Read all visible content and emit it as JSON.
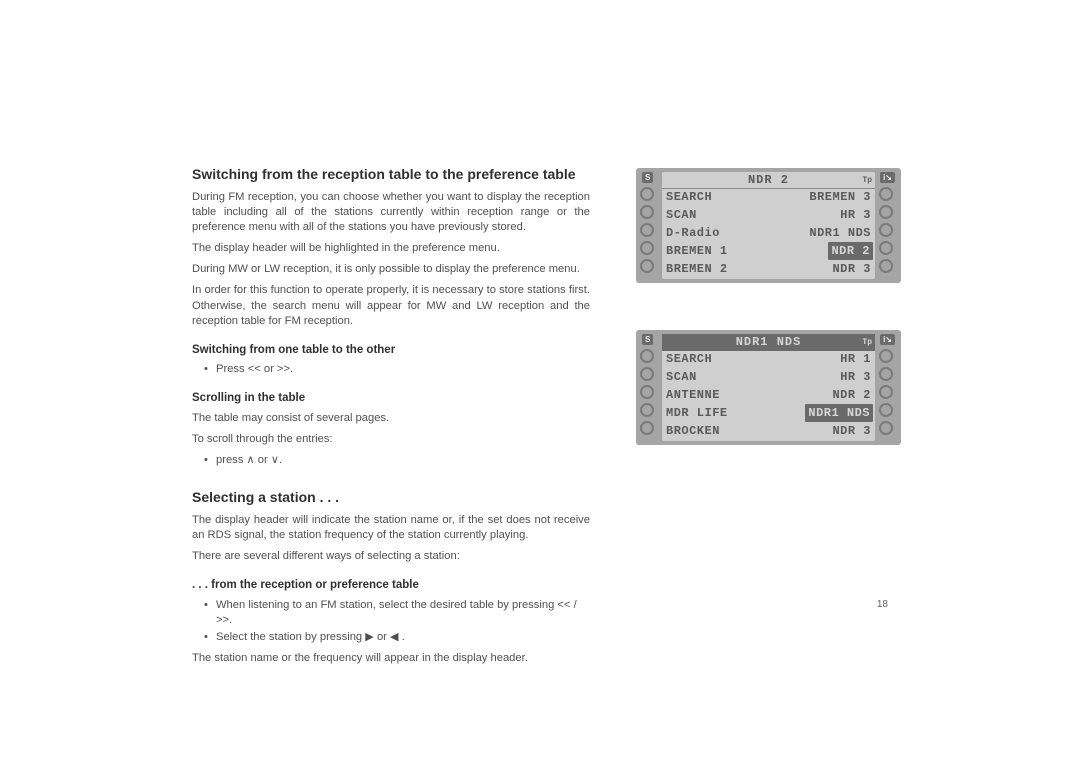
{
  "pageNumber": "18",
  "headings": {
    "h1": "Switching from the reception table to the preference table",
    "h2a": "Switching from one table to the other",
    "h2b": "Scrolling in the table",
    "h1b": "Selecting a station . . .",
    "h2c": ". . . from the reception or preference table"
  },
  "paragraphs": {
    "p1": "During FM reception, you can choose whether you want to display the reception table including all of the stations currently within reception range or the preference menu with all of the stations you have previously stored.",
    "p2": "The display header will be highlighted in the preference menu.",
    "p3": "During MW or LW reception, it is only possible to display the preference menu.",
    "p4": "In order for this function to operate properly, it is necessary to store stations first. Otherwise, the search menu will appear for MW and LW reception and the reception table for FM reception.",
    "b1": "Press << or >>.",
    "p5": "The table may consist of several pages.",
    "p6": "To scroll through the entries:",
    "b2": "press ∧ or ∨.",
    "p7": "The display header will indicate the station name or, if the set does not receive an RDS signal, the station frequency of the station currently playing.",
    "p8": "There are several different ways of selecting a station:",
    "b3": "When listening to an FM station, select the desired table by pressing << / >>.",
    "b4": "Select the station by pressing ▶ or ◀ .",
    "p9": "The station name or the frequency will appear in the display header."
  },
  "cornerS": "S",
  "cornerI": "i↘",
  "display1": {
    "header": "NDR 2",
    "headerInverted": false,
    "tp": "Tp",
    "rows": [
      {
        "left": "SEARCH",
        "right": "BREMEN 3",
        "leftInv": false,
        "rightInv": false
      },
      {
        "left": "SCAN",
        "right": "HR 3",
        "leftInv": false,
        "rightInv": false
      },
      {
        "left": "D-Radio",
        "right": "NDR1 NDS",
        "leftInv": false,
        "rightInv": false
      },
      {
        "left": "BREMEN 1",
        "right": "NDR 2",
        "leftInv": false,
        "rightInv": true
      },
      {
        "left": "BREMEN 2",
        "right": "NDR 3",
        "leftInv": false,
        "rightInv": false
      }
    ]
  },
  "display2": {
    "header": "NDR1 NDS",
    "headerInverted": true,
    "tp": "Tp",
    "rows": [
      {
        "left": "SEARCH",
        "right": "HR 1",
        "leftInv": false,
        "rightInv": false
      },
      {
        "left": "SCAN",
        "right": "HR 3",
        "leftInv": false,
        "rightInv": false
      },
      {
        "left": "ANTENNE",
        "right": "NDR 2",
        "leftInv": false,
        "rightInv": false
      },
      {
        "left": "MDR LIFE",
        "right": "NDR1 NDS",
        "leftInv": false,
        "rightInv": true
      },
      {
        "left": "BROCKEN",
        "right": "NDR 3",
        "leftInv": false,
        "rightInv": false
      }
    ]
  },
  "colors": {
    "deviceBg": "#a5a5a5",
    "lcdBg": "#cfcfcf",
    "lcdText": "#5a5a5a",
    "lcdInvBg": "#6a6a6a",
    "lcdInvText": "#d6d6d6",
    "bodyText": "#505050",
    "headingText": "#303030"
  }
}
